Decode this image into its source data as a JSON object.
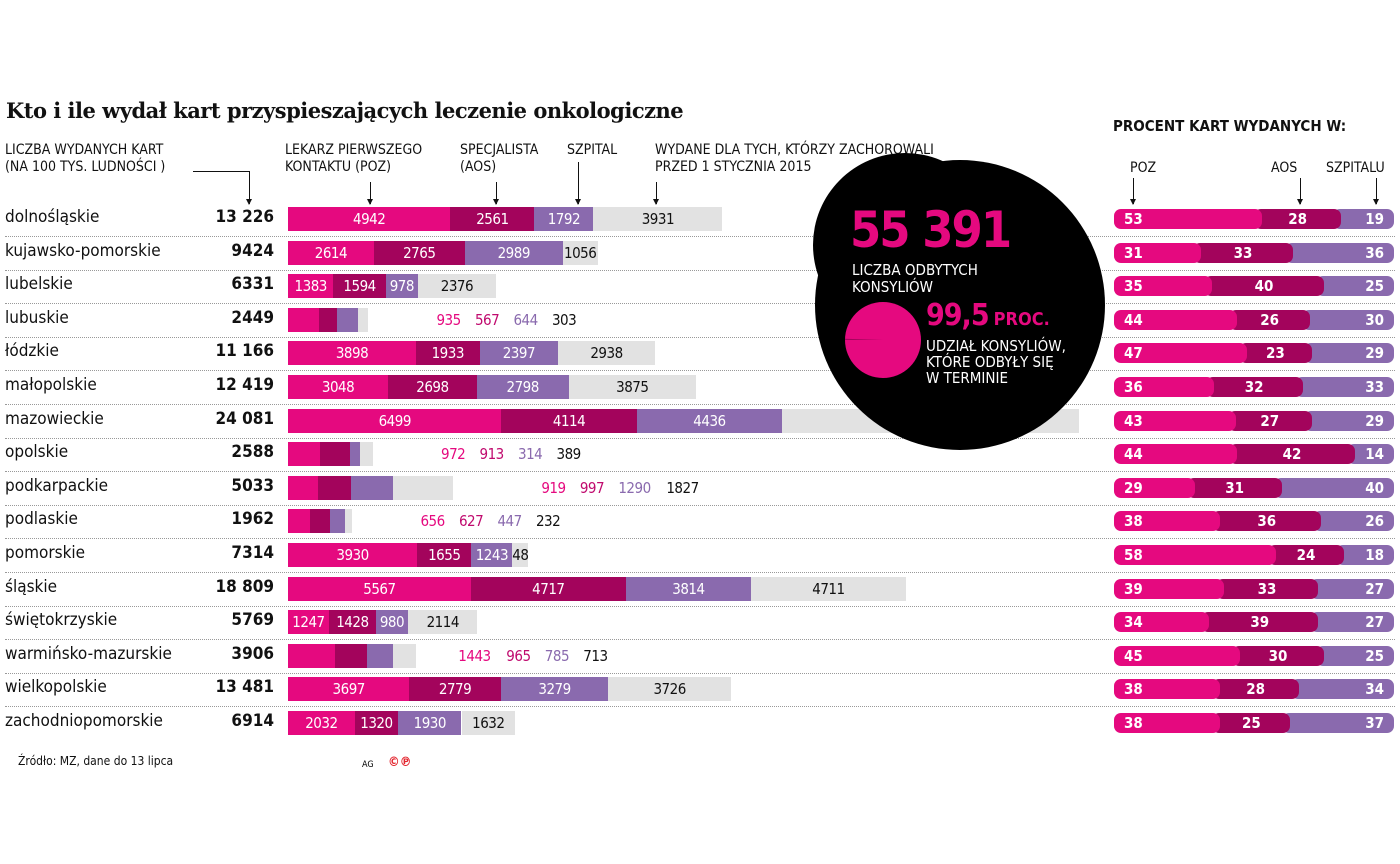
{
  "title": "Kto i ile wydał kart przyspieszających leczenie onkologiczne",
  "headers": {
    "total_line1": "LICZBA WYDANYCH KART",
    "total_line2": "(NA 100 TYS. LUDNOŚCI )",
    "poz_line1": "LEKARZ PIERWSZEGO",
    "poz_line2": "KONTAKTU (POZ)",
    "aos_line1": "SPECJALISTA",
    "aos_line2": "(AOS)",
    "szpital": "SZPITAL",
    "old_line1": "WYDANE DLA TYCH, KTÓRZY ZACHOROWALI",
    "old_line2": "PRZED 1 STYCZNIA 2015",
    "percent_title": "PROCENT KART WYDANYCH W:",
    "pct_poz": "POZ",
    "pct_aos": "AOS",
    "pct_szpital": "SZPITALU"
  },
  "callout": {
    "consults_value": "55 391",
    "consults_line1": "LICZBA ODBYTYCH",
    "consults_line2": "KONSYLIÓW",
    "ontime_value": "99,5",
    "ontime_unit": "PROC.",
    "ontime_line1": "UDZIAŁ KONSYLIÓW,",
    "ontime_line2": "KTÓRE ODBYŁY SIĘ",
    "ontime_line3": "W TERMINIE",
    "ontime_percent": 99.5
  },
  "colors": {
    "poz": "#e5097f",
    "aos": "#a3045c",
    "szpital": "#8a6aae",
    "old": "#e2e2e2",
    "callout_bg": "#000000"
  },
  "chart_data": [
    {
      "type": "bar",
      "stacked": true,
      "orientation": "horizontal",
      "series_names": [
        "LEKARZ PIERWSZEGO KONTAKTU (POZ)",
        "SPECJALISTA (AOS)",
        "SZPITAL",
        "WYDANE DLA TYCH, KTÓRZY ZACHOROWALI PRZED 1 STYCZNIA 2015"
      ],
      "rows": [
        {
          "name": "dolnośląskie",
          "total": "13 226",
          "values": [
            4942,
            2561,
            1792,
            3931
          ]
        },
        {
          "name": "kujawsko-pomorskie",
          "total": "9424",
          "values": [
            2614,
            2765,
            2989,
            1056
          ]
        },
        {
          "name": "lubelskie",
          "total": "6331",
          "values": [
            1383,
            1594,
            978,
            2376
          ]
        },
        {
          "name": "lubuskie",
          "total": "2449",
          "values": [
            935,
            567,
            644,
            303
          ]
        },
        {
          "name": "łódzkie",
          "total": "11 166",
          "values": [
            3898,
            1933,
            2397,
            2938
          ]
        },
        {
          "name": "małopolskie",
          "total": "12 419",
          "values": [
            3048,
            2698,
            2798,
            3875
          ]
        },
        {
          "name": "mazowieckie",
          "total": "24 081",
          "values": [
            6499,
            4114,
            4436,
            9032
          ]
        },
        {
          "name": "opolskie",
          "total": "2588",
          "values": [
            972,
            913,
            314,
            389
          ]
        },
        {
          "name": "podkarpackie",
          "total": "5033",
          "values": [
            919,
            997,
            1290,
            1827
          ]
        },
        {
          "name": "podlaskie",
          "total": "1962",
          "values": [
            656,
            627,
            447,
            232
          ]
        },
        {
          "name": "pomorskie",
          "total": "7314",
          "values": [
            3930,
            1655,
            1243,
            486
          ]
        },
        {
          "name": "śląskie",
          "total": "18 809",
          "values": [
            5567,
            4717,
            3814,
            4711
          ]
        },
        {
          "name": "świętokrzyskie",
          "total": "5769",
          "values": [
            1247,
            1428,
            980,
            2114
          ]
        },
        {
          "name": "warmińsko-mazurskie",
          "total": "3906",
          "values": [
            1443,
            965,
            785,
            713
          ]
        },
        {
          "name": "wielkopolskie",
          "total": "13 481",
          "values": [
            3697,
            2779,
            3279,
            3726
          ]
        },
        {
          "name": "zachodniopomorskie",
          "total": "6914",
          "values": [
            2032,
            1320,
            1930,
            1632
          ]
        }
      ]
    },
    {
      "type": "bar",
      "stacked": true,
      "orientation": "horizontal",
      "title": "PROCENT KART WYDANYCH W:",
      "series_names": [
        "POZ",
        "AOS",
        "SZPITALU"
      ],
      "values": [
        [
          53,
          28,
          19
        ],
        [
          31,
          33,
          36
        ],
        [
          35,
          40,
          25
        ],
        [
          44,
          26,
          30
        ],
        [
          47,
          23,
          29
        ],
        [
          36,
          32,
          33
        ],
        [
          43,
          27,
          29
        ],
        [
          44,
          42,
          14
        ],
        [
          29,
          31,
          40
        ],
        [
          38,
          36,
          26
        ],
        [
          58,
          24,
          18
        ],
        [
          39,
          33,
          27
        ],
        [
          34,
          39,
          27
        ],
        [
          45,
          30,
          25
        ],
        [
          38,
          28,
          34
        ],
        [
          38,
          25,
          37
        ]
      ]
    }
  ],
  "footer": {
    "source": "Źródło:  MZ, dane do 13 lipca",
    "credit": "AG",
    "logo": "©℗"
  }
}
